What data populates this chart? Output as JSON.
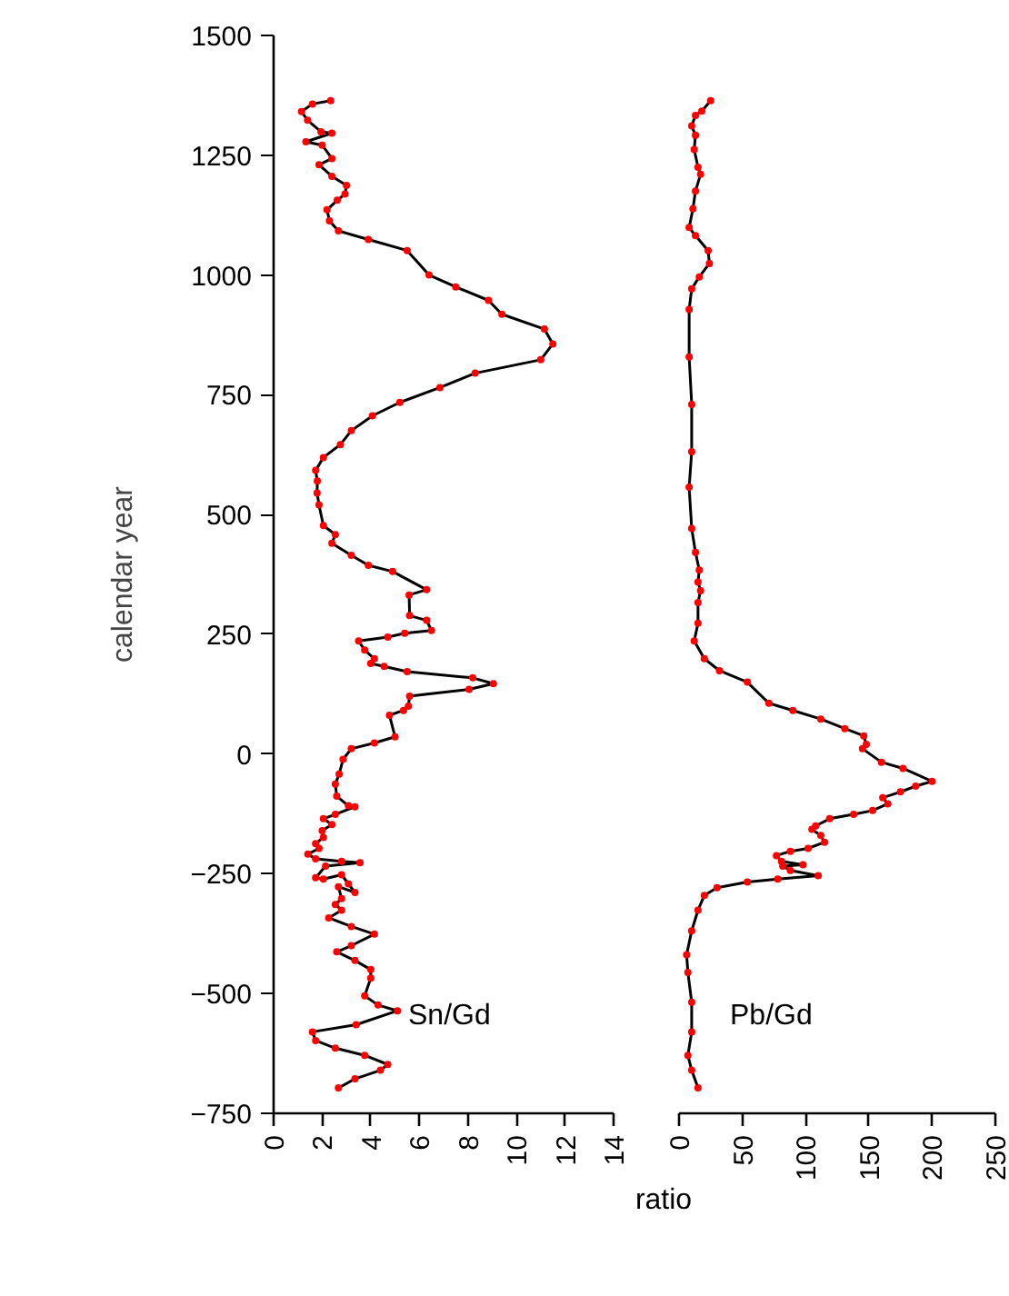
{
  "chart_data": [
    {
      "type": "line",
      "ylabel": "calendar year",
      "xlabel": "ratio",
      "xlim": [
        0,
        14
      ],
      "xticks": [
        0,
        2,
        4,
        6,
        8,
        10,
        12,
        14
      ],
      "ylim": [
        -750,
        1500
      ],
      "yticks": [
        -750,
        -500,
        -250,
        0,
        250,
        500,
        750,
        1000,
        1250,
        1500
      ],
      "grid": false,
      "series": [
        {
          "name": "Sn/Gd",
          "color": "#000000",
          "x": [
            2.35,
            1.6,
            1.15,
            1.4,
            1.95,
            2.4,
            1.33,
            2.0,
            2.4,
            1.87,
            2.4,
            3.0,
            2.94,
            2.62,
            2.2,
            2.3,
            2.67,
            3.9,
            5.5,
            6.4,
            7.5,
            8.85,
            9.4,
            11.15,
            11.5,
            11.0,
            8.3,
            6.85,
            5.2,
            4.07,
            3.2,
            2.75,
            2.05,
            1.73,
            1.8,
            1.79,
            1.87,
            2.05,
            2.54,
            2.4,
            3.2,
            3.9,
            4.9,
            6.3,
            5.58,
            5.6,
            6.3,
            6.5,
            5.4,
            4.7,
            3.5,
            3.75,
            4.15,
            4.0,
            4.55,
            5.5,
            8.2,
            9.05,
            8.05,
            5.6,
            5.55,
            5.35,
            4.77,
            5.0,
            4.15,
            3.2,
            2.86,
            2.7,
            2.54,
            2.6,
            3.08,
            3.35,
            2.54,
            2.05,
            2.4,
            2.0,
            2.05,
            1.73,
            1.87,
            1.41,
            1.73,
            2.8,
            3.56,
            2.14,
            1.73,
            2.05,
            2.8,
            3.08,
            3.35,
            2.67,
            2.8,
            2.54,
            2.8,
            2.27,
            3.2,
            4.15,
            3.2,
            2.6,
            3.35,
            4.0,
            4.0,
            3.75,
            4.3,
            5.1,
            3.4,
            1.6,
            1.73,
            2.54,
            3.75,
            4.7,
            4.4,
            3.35,
            2.67
          ],
          "values": [
            1364,
            1357,
            1341,
            1323,
            1299,
            1296,
            1278,
            1271,
            1243,
            1230,
            1206,
            1187,
            1169,
            1156,
            1136,
            1113,
            1092,
            1074,
            1051,
            1000,
            975,
            947,
            918,
            887,
            856,
            823,
            795,
            765,
            734,
            706,
            675,
            646,
            619,
            592,
            570,
            545,
            520,
            477,
            458,
            440,
            415,
            394,
            381,
            343,
            332,
            289,
            279,
            258,
            252,
            244,
            236,
            217,
            199,
            189,
            183,
            172,
            159,
            147,
            135,
            121,
            100,
            91,
            81,
            36,
            23,
            11,
            -11,
            -42,
            -63,
            -88,
            -108,
            -110,
            -126,
            -135,
            -147,
            -160,
            -174,
            -187,
            -197,
            -209,
            -219,
            -224,
            -227,
            -234,
            -258,
            -261,
            -252,
            -271,
            -289,
            -277,
            -302,
            -314,
            -326,
            -342,
            -360,
            -376,
            -400,
            -413,
            -431,
            -450,
            -468,
            -505,
            -524,
            -536,
            -565,
            -580,
            -598,
            -614,
            -629,
            -648,
            -660,
            -678,
            -697
          ]
        },
        {
          "type": "scatter",
          "color": "#ff0000",
          "marker": "circle",
          "x": [
            2.35,
            1.6,
            1.15,
            1.4,
            1.95,
            2.4,
            1.33,
            2.0,
            2.4,
            1.87,
            2.4,
            3.0,
            2.94,
            2.62,
            2.2,
            2.3,
            2.67,
            3.9,
            5.5,
            6.4,
            7.5,
            8.85,
            9.4,
            11.15,
            11.5,
            11.0,
            8.3,
            6.85,
            5.2,
            4.07,
            3.2,
            2.75,
            2.05,
            1.73,
            1.8,
            1.79,
            1.87,
            2.05,
            2.54,
            2.4,
            3.2,
            3.9,
            4.9,
            6.3,
            5.58,
            5.6,
            6.3,
            6.5,
            5.4,
            4.7,
            3.5,
            3.75,
            4.15,
            4.0,
            4.55,
            5.5,
            8.2,
            9.05,
            8.05,
            5.6,
            5.55,
            5.35,
            4.77,
            5.0,
            4.15,
            3.2,
            2.86,
            2.7,
            2.54,
            2.6,
            3.08,
            3.35,
            2.54,
            2.05,
            2.4,
            2.0,
            2.05,
            1.73,
            1.87,
            1.41,
            1.73,
            2.8,
            3.56,
            2.14,
            1.73,
            2.05,
            2.8,
            3.08,
            3.35,
            2.67,
            2.8,
            2.54,
            2.8,
            2.27,
            3.2,
            4.15,
            3.2,
            2.6,
            3.35,
            4.0,
            4.0,
            3.75,
            4.3,
            5.1,
            3.4,
            1.6,
            1.73,
            2.54,
            3.75,
            4.7,
            4.4,
            3.35,
            2.67
          ],
          "values": [
            1364,
            1357,
            1341,
            1323,
            1299,
            1296,
            1278,
            1271,
            1243,
            1230,
            1206,
            1187,
            1169,
            1156,
            1136,
            1113,
            1092,
            1074,
            1051,
            1000,
            975,
            947,
            918,
            887,
            856,
            823,
            795,
            765,
            734,
            706,
            675,
            646,
            619,
            592,
            570,
            545,
            520,
            477,
            458,
            440,
            415,
            394,
            381,
            343,
            332,
            289,
            279,
            258,
            252,
            244,
            236,
            217,
            199,
            189,
            183,
            172,
            159,
            147,
            135,
            121,
            100,
            91,
            81,
            36,
            23,
            11,
            -11,
            -42,
            -63,
            -88,
            -108,
            -110,
            -126,
            -135,
            -147,
            -160,
            -174,
            -187,
            -197,
            -209,
            -219,
            -224,
            -227,
            -234,
            -258,
            -261,
            -252,
            -271,
            -289,
            -277,
            -302,
            -314,
            -326,
            -342,
            -360,
            -376,
            -400,
            -413,
            -431,
            -450,
            -468,
            -505,
            -524,
            -536,
            -565,
            -580,
            -598,
            -614,
            -629,
            -648,
            -660,
            -678,
            -697
          ]
        }
      ]
    },
    {
      "type": "line",
      "xlim": [
        0,
        250
      ],
      "xticks": [
        0,
        50,
        100,
        150,
        200,
        250
      ],
      "ylim": [
        -750,
        1500
      ],
      "tick_labels": "x",
      "grid": false,
      "series": [
        {
          "name": "Pb/Gd",
          "color": "#000000",
          "x": [
            25,
            18,
            13,
            10,
            13,
            12,
            15,
            17,
            13,
            11,
            8,
            13,
            23,
            24,
            16,
            10,
            8,
            8,
            10,
            10,
            8,
            10,
            13,
            16,
            15,
            17,
            15,
            15,
            12,
            20,
            32,
            54,
            71,
            90,
            112,
            131,
            146,
            148,
            145,
            160,
            177,
            200,
            187,
            175,
            161,
            165,
            153,
            138,
            119,
            108,
            105,
            112,
            115,
            102,
            88,
            77,
            81,
            98,
            82,
            88,
            110,
            78,
            54,
            30,
            20,
            15,
            10,
            6,
            7,
            10,
            10,
            7,
            10,
            15
          ],
          "values": [
            1364,
            1342,
            1333,
            1311,
            1292,
            1262,
            1225,
            1210,
            1175,
            1138,
            1099,
            1082,
            1051,
            1024,
            996,
            971,
            928,
            829,
            730,
            631,
            557,
            471,
            421,
            384,
            359,
            341,
            316,
            273,
            236,
            199,
            174,
            150,
            106,
            91,
            73,
            53,
            38,
            20,
            11,
            -17,
            -30,
            -57,
            -67,
            -79,
            -91,
            -104,
            -118,
            -126,
            -135,
            -150,
            -157,
            -170,
            -184,
            -197,
            -203,
            -212,
            -224,
            -231,
            -234,
            -243,
            -254,
            -261,
            -267,
            -279,
            -295,
            -326,
            -369,
            -419,
            -456,
            -518,
            -580,
            -629,
            -660,
            -697
          ]
        },
        {
          "type": "scatter",
          "color": "#ff0000",
          "marker": "circle",
          "x": [
            25,
            18,
            13,
            10,
            13,
            12,
            15,
            17,
            13,
            11,
            8,
            13,
            23,
            24,
            16,
            10,
            8,
            8,
            10,
            10,
            8,
            10,
            13,
            16,
            15,
            17,
            15,
            15,
            12,
            20,
            32,
            54,
            71,
            90,
            112,
            131,
            146,
            148,
            145,
            160,
            177,
            200,
            187,
            175,
            161,
            165,
            153,
            138,
            119,
            108,
            105,
            112,
            115,
            102,
            88,
            77,
            81,
            98,
            82,
            88,
            110,
            78,
            54,
            30,
            20,
            15,
            10,
            6,
            7,
            10,
            10,
            7,
            10,
            15
          ],
          "values": [
            1364,
            1342,
            1333,
            1311,
            1292,
            1262,
            1225,
            1210,
            1175,
            1138,
            1099,
            1082,
            1051,
            1024,
            996,
            971,
            928,
            829,
            730,
            631,
            557,
            471,
            421,
            384,
            359,
            341,
            316,
            273,
            236,
            199,
            174,
            150,
            106,
            91,
            73,
            53,
            38,
            20,
            11,
            -17,
            -30,
            -57,
            -67,
            -79,
            -91,
            -104,
            -118,
            -126,
            -135,
            -150,
            -157,
            -170,
            -184,
            -197,
            -203,
            -212,
            -224,
            -231,
            -234,
            -243,
            -254,
            -261,
            -267,
            -279,
            -295,
            -326,
            -369,
            -419,
            -456,
            -518,
            -580,
            -629,
            -660,
            -697
          ]
        }
      ]
    }
  ]
}
